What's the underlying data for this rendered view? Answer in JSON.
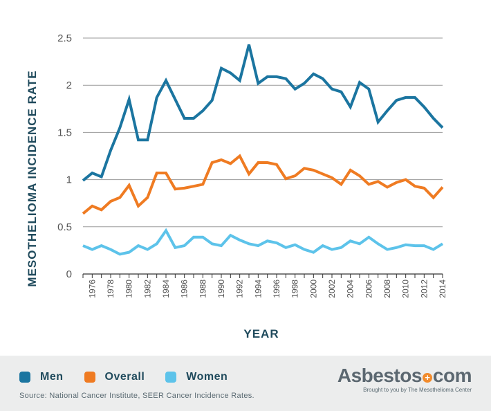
{
  "chart_data": {
    "type": "line",
    "title": "",
    "xlabel": "YEAR",
    "ylabel": "MESOTHELIOMA INCIDENCE RATE",
    "ylim": [
      0,
      2.5
    ],
    "yticks": [
      "0",
      "0.5",
      "1",
      "1.5",
      "2",
      "2.5"
    ],
    "xticks": [
      1976,
      1978,
      1980,
      1982,
      1984,
      1986,
      1988,
      1990,
      1992,
      1994,
      1996,
      1998,
      2000,
      2002,
      2004,
      2006,
      2008,
      2010,
      2012,
      2014
    ],
    "x": [
      1975,
      1976,
      1977,
      1978,
      1979,
      1980,
      1981,
      1982,
      1983,
      1984,
      1985,
      1986,
      1987,
      1988,
      1989,
      1990,
      1991,
      1992,
      1993,
      1994,
      1995,
      1996,
      1997,
      1998,
      1999,
      2000,
      2001,
      2002,
      2003,
      2004,
      2005,
      2006,
      2007,
      2008,
      2009,
      2010,
      2011,
      2012,
      2013,
      2014
    ],
    "series": [
      {
        "name": "Men",
        "color": "#1b75a0",
        "values": [
          0.99,
          1.07,
          1.03,
          1.31,
          1.55,
          1.85,
          1.42,
          1.42,
          1.87,
          2.05,
          1.85,
          1.65,
          1.65,
          1.73,
          1.84,
          2.18,
          2.13,
          2.05,
          2.43,
          2.02,
          2.09,
          2.09,
          2.07,
          1.96,
          2.02,
          2.12,
          2.07,
          1.96,
          1.93,
          1.77,
          2.03,
          1.96,
          1.61,
          1.73,
          1.84,
          1.87,
          1.87,
          1.77,
          1.65,
          1.55
        ]
      },
      {
        "name": "Overall",
        "color": "#ef7b22",
        "values": [
          0.64,
          0.72,
          0.68,
          0.77,
          0.81,
          0.94,
          0.72,
          0.81,
          1.07,
          1.07,
          0.9,
          0.91,
          0.93,
          0.95,
          1.18,
          1.21,
          1.17,
          1.25,
          1.06,
          1.18,
          1.18,
          1.16,
          1.01,
          1.04,
          1.12,
          1.1,
          1.06,
          1.02,
          0.95,
          1.1,
          1.04,
          0.95,
          0.98,
          0.92,
          0.97,
          1.0,
          0.93,
          0.91,
          0.81,
          0.92
        ]
      },
      {
        "name": "Women",
        "color": "#5dc3ea",
        "values": [
          0.3,
          0.26,
          0.3,
          0.26,
          0.21,
          0.23,
          0.3,
          0.26,
          0.32,
          0.46,
          0.28,
          0.3,
          0.39,
          0.39,
          0.32,
          0.3,
          0.41,
          0.36,
          0.32,
          0.3,
          0.35,
          0.33,
          0.28,
          0.31,
          0.26,
          0.23,
          0.3,
          0.26,
          0.28,
          0.35,
          0.32,
          0.39,
          0.32,
          0.26,
          0.28,
          0.31,
          0.3,
          0.3,
          0.26,
          0.32
        ]
      }
    ],
    "legend_position": "bottom-left"
  },
  "legend": {
    "men": "Men",
    "overall": "Overall",
    "women": "Women"
  },
  "source": "Source: National Cancer Institute, SEER Cancer Incidence Rates.",
  "brand": {
    "name_left": "Asbestos",
    "name_right": "com",
    "tagline": "Brought to you by The Mesothelioma Center"
  },
  "colors": {
    "men": "#1b75a0",
    "overall": "#ef7b22",
    "women": "#5dc3ea",
    "accent": "#f28b2c"
  }
}
